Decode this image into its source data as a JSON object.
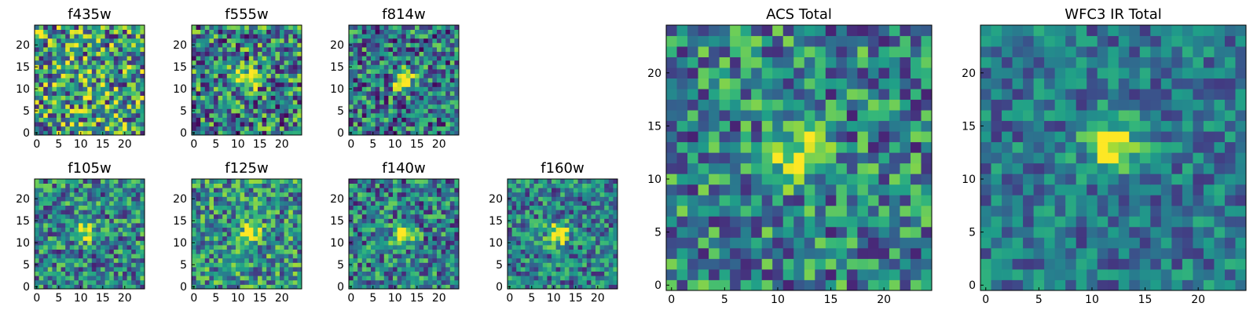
{
  "figure": {
    "colormap": "viridis",
    "grid": false
  },
  "chart_data": [
    {
      "type": "heatmap",
      "title": "f435w",
      "grid_size": 25,
      "xticks": [
        "0",
        "5",
        "10",
        "15",
        "20"
      ],
      "yticks": [
        "0",
        "5",
        "10",
        "15",
        "20"
      ],
      "xlim": [
        -0.5,
        24.5
      ],
      "ylim": [
        -0.5,
        24.5
      ],
      "source_peak": [
        12,
        12
      ],
      "source_intensity": 0.15,
      "noise": 0.6,
      "base": 0.55
    },
    {
      "type": "heatmap",
      "title": "f555w",
      "grid_size": 25,
      "xticks": [
        "0",
        "5",
        "10",
        "15",
        "20"
      ],
      "yticks": [
        "0",
        "5",
        "10",
        "15",
        "20"
      ],
      "xlim": [
        -0.5,
        24.5
      ],
      "ylim": [
        -0.5,
        24.5
      ],
      "source_peak": [
        12,
        12
      ],
      "source_intensity": 0.45,
      "noise": 0.55,
      "base": 0.45
    },
    {
      "type": "heatmap",
      "title": "f814w",
      "grid_size": 25,
      "xticks": [
        "0",
        "5",
        "10",
        "15",
        "20"
      ],
      "yticks": [
        "0",
        "5",
        "10",
        "15",
        "20"
      ],
      "xlim": [
        -0.5,
        24.5
      ],
      "ylim": [
        -0.5,
        24.5
      ],
      "source_peak": [
        12,
        12
      ],
      "source_intensity": 0.65,
      "noise": 0.5,
      "base": 0.4
    },
    {
      "type": "heatmap",
      "title": "f105w",
      "grid_size": 25,
      "xticks": [
        "0",
        "5",
        "10",
        "15",
        "20"
      ],
      "yticks": [
        "0",
        "5",
        "10",
        "15",
        "20"
      ],
      "xlim": [
        -0.5,
        24.5
      ],
      "ylim": [
        -0.5,
        24.5
      ],
      "source_peak": [
        11,
        13
      ],
      "source_intensity": 0.55,
      "noise": 0.45,
      "base": 0.45
    },
    {
      "type": "heatmap",
      "title": "f125w",
      "grid_size": 25,
      "xticks": [
        "0",
        "5",
        "10",
        "15",
        "20"
      ],
      "yticks": [
        "0",
        "5",
        "10",
        "15",
        "20"
      ],
      "xlim": [
        -0.5,
        24.5
      ],
      "ylim": [
        -0.5,
        24.5
      ],
      "source_peak": [
        13,
        12
      ],
      "source_intensity": 0.55,
      "noise": 0.45,
      "base": 0.5
    },
    {
      "type": "heatmap",
      "title": "f140w",
      "grid_size": 25,
      "xticks": [
        "0",
        "5",
        "10",
        "15",
        "20"
      ],
      "yticks": [
        "0",
        "5",
        "10",
        "15",
        "20"
      ],
      "xlim": [
        -0.5,
        24.5
      ],
      "ylim": [
        -0.5,
        24.5
      ],
      "source_peak": [
        12,
        12
      ],
      "source_intensity": 0.6,
      "noise": 0.45,
      "base": 0.42
    },
    {
      "type": "heatmap",
      "title": "f160w",
      "grid_size": 25,
      "xticks": [
        "0",
        "5",
        "10",
        "15",
        "20"
      ],
      "yticks": [
        "0",
        "5",
        "10",
        "15",
        "20"
      ],
      "xlim": [
        -0.5,
        24.5
      ],
      "ylim": [
        -0.5,
        24.5
      ],
      "source_peak": [
        11,
        12
      ],
      "source_intensity": 0.65,
      "noise": 0.4,
      "base": 0.42
    },
    {
      "type": "heatmap",
      "title": "ACS Total",
      "grid_size": 25,
      "xticks": [
        "0",
        "5",
        "10",
        "15",
        "20"
      ],
      "yticks": [
        "0",
        "5",
        "10",
        "15",
        "20"
      ],
      "xlim": [
        -0.5,
        24.5
      ],
      "ylim": [
        -0.5,
        24.5
      ],
      "source_peak": [
        12,
        12
      ],
      "source_intensity": 0.6,
      "noise": 0.45,
      "base": 0.45
    },
    {
      "type": "heatmap",
      "title": "WFC3 IR Total",
      "grid_size": 25,
      "xticks": [
        "0",
        "5",
        "10",
        "15",
        "20"
      ],
      "yticks": [
        "0",
        "5",
        "10",
        "15",
        "20"
      ],
      "xlim": [
        -0.5,
        24.5
      ],
      "ylim": [
        -0.5,
        24.5
      ],
      "source_peak": [
        12,
        13
      ],
      "source_intensity": 0.65,
      "noise": 0.3,
      "base": 0.4
    }
  ]
}
